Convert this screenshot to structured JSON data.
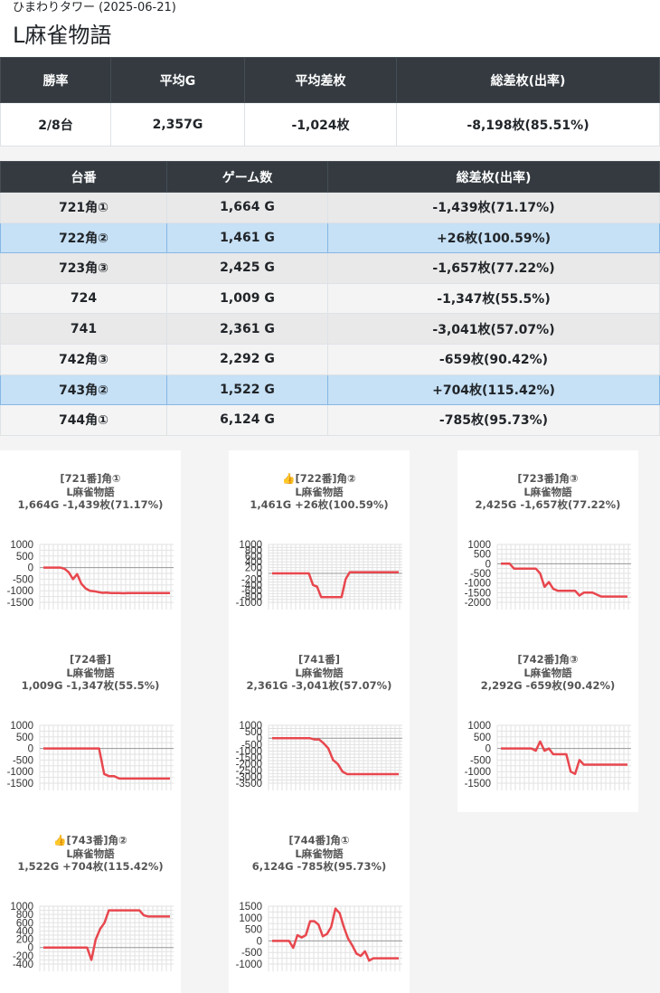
{
  "header": {
    "subtitle": "ひまわりタワー (2025-06-21)",
    "title": "L麻雀物語"
  },
  "summary": {
    "headers": [
      "勝率",
      "平均G",
      "平均差枚",
      "総差枚(出率)"
    ],
    "values": [
      "2/8台",
      "2,357G",
      "-1,024枚",
      "-8,198枚(85.51%)"
    ]
  },
  "machines": {
    "headers": [
      "台番",
      "ゲーム数",
      "総差枚(出率)"
    ],
    "rows": [
      {
        "id": "721角①",
        "games": "1,664 G",
        "diff": "-1,439枚(71.17%)",
        "win": false
      },
      {
        "id": "722角②",
        "games": "1,461 G",
        "diff": "+26枚(100.59%)",
        "win": true
      },
      {
        "id": "723角③",
        "games": "2,425 G",
        "diff": "-1,657枚(77.22%)",
        "win": false
      },
      {
        "id": "724",
        "games": "1,009 G",
        "diff": "-1,347枚(55.5%)",
        "win": false
      },
      {
        "id": "741",
        "games": "2,361 G",
        "diff": "-3,041枚(57.07%)",
        "win": false
      },
      {
        "id": "742角③",
        "games": "2,292 G",
        "diff": "-659枚(90.42%)",
        "win": false
      },
      {
        "id": "743角②",
        "games": "1,522 G",
        "diff": "+704枚(115.42%)",
        "win": true
      },
      {
        "id": "744角①",
        "games": "6,124 G",
        "diff": "-785枚(95.73%)",
        "win": false
      }
    ]
  },
  "chart_data": [
    {
      "type": "line",
      "title_lines": [
        "[721番]角①",
        "L麻雀物語",
        "1,664G -1,439枚(71.17%)"
      ],
      "ylim": [
        -1500,
        1000
      ],
      "yticks": [
        1000,
        500,
        0,
        -500,
        -1000,
        -1500
      ],
      "values": [
        0,
        0,
        0,
        0,
        0,
        -50,
        -200,
        -500,
        -280,
        -700,
        -900,
        -1000,
        -1020,
        -1060,
        -1090,
        -1080,
        -1100,
        -1100,
        -1100,
        -1110,
        -1100,
        -1100,
        -1100,
        -1100,
        -1100,
        -1100,
        -1100,
        -1100,
        -1100,
        -1100,
        -1100
      ],
      "color": "#e8474e"
    },
    {
      "type": "line",
      "title_lines": [
        "👍[722番]角②",
        "L麻雀物語",
        "1,461G +26枚(100.59%)"
      ],
      "ylim": [
        -1000,
        1000
      ],
      "yticks": [
        1000,
        800,
        600,
        400,
        200,
        0,
        -200,
        -400,
        -600,
        -800,
        -1000
      ],
      "values": [
        0,
        0,
        0,
        0,
        0,
        0,
        0,
        0,
        0,
        0,
        -400,
        -460,
        -820,
        -820,
        -820,
        -820,
        -820,
        -820,
        -200,
        40,
        40,
        40,
        40,
        40,
        40,
        40,
        40,
        40,
        40,
        40,
        40,
        40
      ],
      "color": "#e8474e"
    },
    {
      "type": "line",
      "title_lines": [
        "[723番]角③",
        "L麻雀物語",
        "2,425G -1,657枚(77.22%)"
      ],
      "ylim": [
        -2000,
        1000
      ],
      "yticks": [
        1000,
        500,
        0,
        -500,
        -1000,
        -1500,
        -2000
      ],
      "values": [
        0,
        0,
        0,
        -250,
        -250,
        -250,
        -250,
        -250,
        -250,
        -500,
        -1200,
        -950,
        -1300,
        -1400,
        -1400,
        -1400,
        -1400,
        -1400,
        -1650,
        -1500,
        -1500,
        -1500,
        -1600,
        -1700,
        -1700,
        -1700,
        -1700,
        -1700,
        -1700,
        -1700
      ],
      "color": "#e8474e"
    },
    {
      "type": "line",
      "title_lines": [
        "[724番]",
        "L麻雀物語",
        "1,009G -1,347枚(55.5%)"
      ],
      "ylim": [
        -1500,
        1000
      ],
      "yticks": [
        1000,
        500,
        0,
        -500,
        -1000,
        -1500
      ],
      "values": [
        0,
        0,
        0,
        0,
        0,
        0,
        0,
        0,
        0,
        0,
        0,
        0,
        -1100,
        -1200,
        -1200,
        -1300,
        -1300,
        -1300,
        -1300,
        -1300,
        -1300,
        -1300,
        -1300,
        -1300,
        -1300,
        -1300
      ],
      "color": "#e8474e"
    },
    {
      "type": "line",
      "title_lines": [
        "[741番]",
        "L麻雀物語",
        "2,361G -3,041枚(57.07%)"
      ],
      "ylim": [
        -3500,
        1000
      ],
      "yticks": [
        1000,
        500,
        0,
        -500,
        -1000,
        -1500,
        -2000,
        -2500,
        -3000,
        -3500
      ],
      "values": [
        0,
        0,
        0,
        0,
        0,
        0,
        0,
        0,
        0,
        -100,
        -100,
        -400,
        -800,
        -1700,
        -2000,
        -2600,
        -2800,
        -2800,
        -2800,
        -2800,
        -2800,
        -2800,
        -2800,
        -2800,
        -2800,
        -2800,
        -2800,
        -2800
      ],
      "color": "#e8474e"
    },
    {
      "type": "line",
      "title_lines": [
        "[742番]角③",
        "L麻雀物語",
        "2,292G -659枚(90.42%)"
      ],
      "ylim": [
        -1500,
        1000
      ],
      "yticks": [
        1000,
        500,
        0,
        -500,
        -1000,
        -1500
      ],
      "values": [
        0,
        0,
        0,
        0,
        0,
        0,
        0,
        0,
        -100,
        300,
        -100,
        0,
        -250,
        -250,
        -250,
        -250,
        -1000,
        -1100,
        -500,
        -700,
        -700,
        -700,
        -700,
        -700,
        -700,
        -700,
        -700,
        -700,
        -700,
        -700
      ],
      "color": "#e8474e"
    },
    {
      "type": "line",
      "title_lines": [
        "👍[743番]角②",
        "L麻雀物語",
        "1,522G +704枚(115.42%)"
      ],
      "ylim": [
        -400,
        1000
      ],
      "yticks": [
        1000,
        800,
        600,
        400,
        200,
        0,
        -200,
        -400
      ],
      "values": [
        0,
        0,
        0,
        0,
        0,
        0,
        0,
        0,
        0,
        0,
        0,
        -300,
        200,
        450,
        600,
        900,
        900,
        900,
        900,
        900,
        900,
        900,
        900,
        780,
        750,
        750,
        750,
        750,
        750,
        750
      ],
      "color": "#e8474e"
    },
    {
      "type": "line",
      "title_lines": [
        "[744番]角①",
        "L麻雀物語",
        "6,124G -785枚(95.73%)"
      ],
      "ylim": [
        -1000,
        1500
      ],
      "yticks": [
        1500,
        1000,
        500,
        0,
        -500,
        -1000
      ],
      "values": [
        0,
        0,
        0,
        0,
        0,
        -300,
        250,
        150,
        250,
        850,
        850,
        700,
        200,
        300,
        600,
        1400,
        1200,
        600,
        100,
        -200,
        -550,
        -650,
        -450,
        -850,
        -750,
        -750,
        -750,
        -750,
        -750,
        -750,
        -750
      ],
      "color": "#e8474e"
    }
  ]
}
